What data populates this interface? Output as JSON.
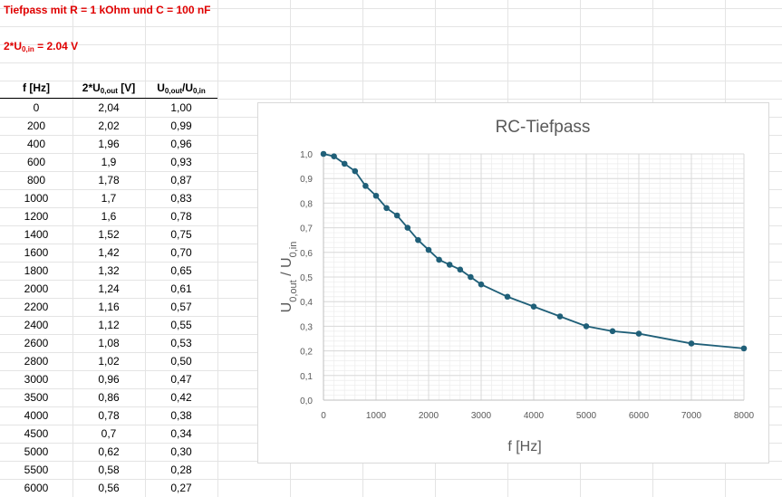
{
  "sheet": {
    "title": "Tiefpass mit R = 1 kOhm und C = 100 nF",
    "input_main": "2*U",
    "input_sub": "0,in",
    "input_rest": " = 2.04 V",
    "headers": {
      "f": "f [Hz]",
      "u_main": "2*U",
      "u_sub": "0,out",
      "u_rest": " [V]",
      "r_main1": "U",
      "r_sub1": "0,out",
      "r_main2": "/U",
      "r_sub2": "0,in"
    },
    "rows": [
      {
        "f": "0",
        "u": "2,04",
        "r": "1,00"
      },
      {
        "f": "200",
        "u": "2,02",
        "r": "0,99"
      },
      {
        "f": "400",
        "u": "1,96",
        "r": "0,96"
      },
      {
        "f": "600",
        "u": "1,9",
        "r": "0,93"
      },
      {
        "f": "800",
        "u": "1,78",
        "r": "0,87"
      },
      {
        "f": "1000",
        "u": "1,7",
        "r": "0,83"
      },
      {
        "f": "1200",
        "u": "1,6",
        "r": "0,78"
      },
      {
        "f": "1400",
        "u": "1,52",
        "r": "0,75"
      },
      {
        "f": "1600",
        "u": "1,42",
        "r": "0,70"
      },
      {
        "f": "1800",
        "u": "1,32",
        "r": "0,65"
      },
      {
        "f": "2000",
        "u": "1,24",
        "r": "0,61"
      },
      {
        "f": "2200",
        "u": "1,16",
        "r": "0,57"
      },
      {
        "f": "2400",
        "u": "1,12",
        "r": "0,55"
      },
      {
        "f": "2600",
        "u": "1,08",
        "r": "0,53"
      },
      {
        "f": "2800",
        "u": "1,02",
        "r": "0,50"
      },
      {
        "f": "3000",
        "u": "0,96",
        "r": "0,47"
      },
      {
        "f": "3500",
        "u": "0,86",
        "r": "0,42"
      },
      {
        "f": "4000",
        "u": "0,78",
        "r": "0,38"
      },
      {
        "f": "4500",
        "u": "0,7",
        "r": "0,34"
      },
      {
        "f": "5000",
        "u": "0,62",
        "r": "0,30"
      },
      {
        "f": "5500",
        "u": "0,58",
        "r": "0,28"
      },
      {
        "f": "6000",
        "u": "0,56",
        "r": "0,27"
      }
    ]
  },
  "chart_data": {
    "type": "scatter",
    "title": "RC-Tiefpass",
    "xlabel": "f [Hz]",
    "ylabel_main1": "U",
    "ylabel_sub1": "0,out",
    "ylabel_main2": " / U",
    "ylabel_sub2": "0,in",
    "xlim": [
      0,
      8000
    ],
    "ylim": [
      0,
      1.0
    ],
    "x_ticks": [
      "0",
      "1000",
      "2000",
      "3000",
      "4000",
      "5000",
      "6000",
      "7000",
      "8000"
    ],
    "y_ticks": [
      "0,0",
      "0,1",
      "0,2",
      "0,3",
      "0,4",
      "0,5",
      "0,6",
      "0,7",
      "0,8",
      "0,9",
      "1,0"
    ],
    "grid": true,
    "colors": {
      "series": "#1f5f78",
      "grid": "#d9d9d9",
      "axis": "#bfbfbf",
      "title": "#595959"
    },
    "series": [
      {
        "x": [
          0,
          200,
          400,
          600,
          800,
          1000,
          1200,
          1400,
          1600,
          1800,
          2000,
          2200,
          2400,
          2600,
          2800,
          3000,
          3500,
          4000,
          4500,
          5000,
          5500,
          6000,
          7000,
          8000
        ],
        "y": [
          1.0,
          0.99,
          0.96,
          0.93,
          0.87,
          0.83,
          0.78,
          0.75,
          0.7,
          0.65,
          0.61,
          0.57,
          0.55,
          0.53,
          0.5,
          0.47,
          0.42,
          0.38,
          0.34,
          0.3,
          0.28,
          0.27,
          0.23,
          0.21
        ]
      }
    ]
  }
}
